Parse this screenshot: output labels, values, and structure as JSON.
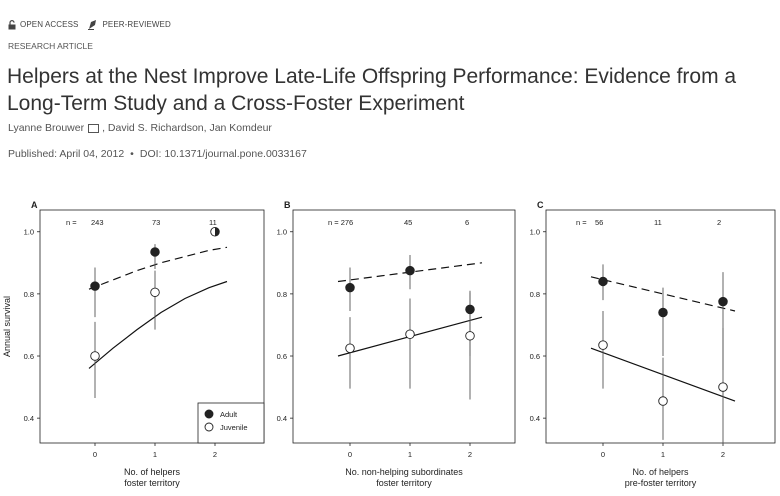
{
  "badges": {
    "open_access": "OPEN ACCESS",
    "peer_reviewed": "PEER-REVIEWED"
  },
  "article_type": "RESEARCH ARTICLE",
  "title": "Helpers at the Nest Improve Late-Life Offspring Performance: Evidence from a Long-Term Study and a Cross-Foster Experiment",
  "authors": {
    "first": "Lyanne Brouwer",
    "rest": ", David S. Richardson,  Jan Komdeur"
  },
  "published": "Published: April 04, 2012",
  "doi": "DOI: 10.1371/journal.pone.0033167",
  "chart_data": [
    {
      "type": "scatter",
      "panel_label": "A",
      "ylabel": "Annual survival",
      "xlabel": [
        "No. of helpers",
        "foster territory"
      ],
      "x_ticks": [
        "0",
        "1",
        "2"
      ],
      "y_ticks": [
        "0.4",
        "0.6",
        "0.8",
        "1.0"
      ],
      "ylim": [
        0.32,
        1.07
      ],
      "n_labels": [
        "n =",
        "243",
        "73",
        "11"
      ],
      "legend": {
        "placement": "bottom-right",
        "entries": [
          "Adult",
          "Juvenile"
        ]
      },
      "series": [
        {
          "name": "Adult",
          "marker": "filled",
          "points": [
            {
              "x": 0,
              "y": 0.825,
              "lo": 0.725,
              "hi": 0.885
            },
            {
              "x": 1,
              "y": 0.935,
              "lo": 0.88,
              "hi": 0.96
            },
            {
              "x": 2,
              "y": 1.0,
              "lo": 1.0,
              "hi": 1.0
            }
          ],
          "fit": {
            "style": "dashed",
            "x": [
              -0.1,
              0.3,
              0.7,
              1.1,
              1.5,
              1.9,
              2.2
            ],
            "y": [
              0.815,
              0.845,
              0.875,
              0.9,
              0.92,
              0.94,
              0.95
            ]
          }
        },
        {
          "name": "Juvenile",
          "marker": "open",
          "points": [
            {
              "x": 0,
              "y": 0.6,
              "lo": 0.465,
              "hi": 0.71
            },
            {
              "x": 1,
              "y": 0.805,
              "lo": 0.685,
              "hi": 0.875
            },
            {
              "x": 2,
              "y": 1.0,
              "lo": 1.0,
              "hi": 1.0
            }
          ],
          "fit": {
            "style": "solid",
            "x": [
              -0.1,
              0.3,
              0.7,
              1.1,
              1.5,
              1.9,
              2.2
            ],
            "y": [
              0.56,
              0.625,
              0.685,
              0.74,
              0.785,
              0.82,
              0.84
            ]
          }
        }
      ]
    },
    {
      "type": "scatter",
      "panel_label": "B",
      "xlabel": [
        "No. non-helping subordinates",
        "foster territory"
      ],
      "x_ticks": [
        "0",
        "1",
        "2"
      ],
      "y_ticks": [
        "0.4",
        "0.6",
        "0.8",
        "1.0"
      ],
      "ylim": [
        0.32,
        1.07
      ],
      "n_labels": [
        "n = 276",
        "45",
        "6"
      ],
      "series": [
        {
          "name": "Adult",
          "marker": "filled",
          "points": [
            {
              "x": 0,
              "y": 0.82,
              "lo": 0.745,
              "hi": 0.885
            },
            {
              "x": 1,
              "y": 0.875,
              "lo": 0.815,
              "hi": 0.925
            },
            {
              "x": 2,
              "y": 0.75,
              "lo": 0.6,
              "hi": 0.81
            }
          ],
          "fit": {
            "style": "dashed",
            "x": [
              -0.2,
              2.2
            ],
            "y": [
              0.84,
              0.9
            ]
          }
        },
        {
          "name": "Juvenile",
          "marker": "open",
          "points": [
            {
              "x": 0,
              "y": 0.625,
              "lo": 0.495,
              "hi": 0.725
            },
            {
              "x": 1,
              "y": 0.67,
              "lo": 0.495,
              "hi": 0.785
            },
            {
              "x": 2,
              "y": 0.665,
              "lo": 0.46,
              "hi": 0.805
            }
          ],
          "fit": {
            "style": "solid",
            "x": [
              -0.2,
              2.2
            ],
            "y": [
              0.6,
              0.725
            ]
          }
        }
      ]
    },
    {
      "type": "scatter",
      "panel_label": "C",
      "xlabel": [
        "No. of helpers",
        "pre-foster territory"
      ],
      "x_ticks": [
        "0",
        "1",
        "2"
      ],
      "y_ticks": [
        "0.4",
        "0.6",
        "0.8",
        "1.0"
      ],
      "ylim": [
        0.32,
        1.07
      ],
      "n_labels": [
        "n =",
        "56",
        "11",
        "2"
      ],
      "series": [
        {
          "name": "Adult",
          "marker": "filled",
          "points": [
            {
              "x": 0,
              "y": 0.84,
              "lo": 0.78,
              "hi": 0.895
            },
            {
              "x": 1,
              "y": 0.74,
              "lo": 0.6,
              "hi": 0.82
            },
            {
              "x": 2,
              "y": 0.775,
              "lo": 0.555,
              "hi": 0.87
            }
          ],
          "fit": {
            "style": "dashed",
            "x": [
              -0.2,
              2.2
            ],
            "y": [
              0.855,
              0.745
            ]
          }
        },
        {
          "name": "Juvenile",
          "marker": "open",
          "points": [
            {
              "x": 0,
              "y": 0.635,
              "lo": 0.495,
              "hi": 0.745
            },
            {
              "x": 1,
              "y": 0.455,
              "lo": 0.33,
              "hi": 0.595
            },
            {
              "x": 2,
              "y": 0.5,
              "lo": 0.315,
              "hi": 0.69
            }
          ],
          "fit": {
            "style": "solid",
            "x": [
              -0.2,
              2.2
            ],
            "y": [
              0.625,
              0.455
            ]
          }
        }
      ]
    }
  ]
}
